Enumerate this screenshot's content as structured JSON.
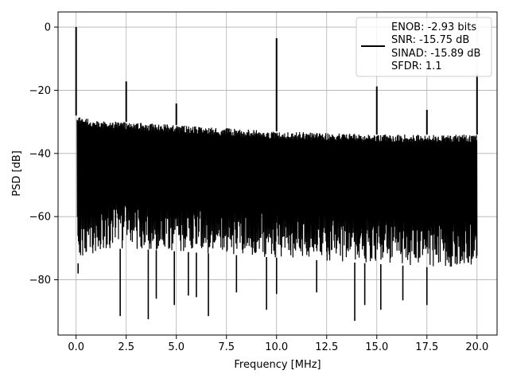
{
  "chart_data": {
    "type": "line",
    "title": "",
    "xlabel": "Frequency [MHz]",
    "ylabel": "PSD [dB]",
    "xlim": [
      -0.9,
      21.0
    ],
    "ylim": [
      -97.5,
      4.8
    ],
    "x_ticks": [
      0.0,
      2.5,
      5.0,
      7.5,
      10.0,
      12.5,
      15.0,
      17.5,
      20.0
    ],
    "x_tick_labels": [
      "0.0",
      "2.5",
      "5.0",
      "7.5",
      "10.0",
      "12.5",
      "15.0",
      "17.5",
      "20.0"
    ],
    "y_ticks": [
      0,
      -20,
      -40,
      -60,
      -80
    ],
    "y_tick_labels": [
      "0",
      "−20",
      "−40",
      "−60",
      "−80"
    ],
    "grid": true,
    "legend_position": "top-right",
    "legend_lines": [
      "ENOB: -2.93 bits",
      "SNR: -15.75 dB",
      "SINAD: -15.89 dB",
      "SFDR: 1.1"
    ],
    "series_color": "#000000",
    "series": [
      {
        "name": "ENOB: -2.93 bits\nSNR: -15.75 dB\nSINAD: -15.89 dB\nSFDR: 1.1",
        "noise_envelope": {
          "x": [
            0.05,
            1.0,
            2.5,
            5.0,
            7.5,
            10.0,
            12.5,
            15.0,
            17.5,
            20.0
          ],
          "upper": [
            -28,
            -29.5,
            -30,
            -31,
            -32,
            -33,
            -33.5,
            -34,
            -34,
            -34
          ],
          "lower": [
            -75,
            -71,
            -70,
            -71,
            -72,
            -73,
            -74,
            -75,
            -76,
            -76
          ]
        },
        "spikes": [
          {
            "x": 0.0,
            "y": 0.0
          },
          {
            "x": 2.5,
            "y": -17.2
          },
          {
            "x": 5.0,
            "y": -24.2
          },
          {
            "x": 10.0,
            "y": -3.5
          },
          {
            "x": 15.0,
            "y": -18.8
          },
          {
            "x": 17.5,
            "y": -26.2
          },
          {
            "x": 20.0,
            "y": -15.0
          }
        ],
        "dips": [
          {
            "x": 0.1,
            "y": -78
          },
          {
            "x": 2.2,
            "y": -91.5
          },
          {
            "x": 3.6,
            "y": -92.5
          },
          {
            "x": 4.0,
            "y": -86
          },
          {
            "x": 4.9,
            "y": -88
          },
          {
            "x": 5.6,
            "y": -85
          },
          {
            "x": 6.0,
            "y": -85.5
          },
          {
            "x": 6.6,
            "y": -91.5
          },
          {
            "x": 8.0,
            "y": -84
          },
          {
            "x": 9.5,
            "y": -89.5
          },
          {
            "x": 10.0,
            "y": -84.5
          },
          {
            "x": 12.0,
            "y": -84
          },
          {
            "x": 13.9,
            "y": -93
          },
          {
            "x": 14.4,
            "y": -88
          },
          {
            "x": 15.2,
            "y": -89.5
          },
          {
            "x": 16.3,
            "y": -86.5
          },
          {
            "x": 17.5,
            "y": -88
          }
        ]
      }
    ]
  }
}
